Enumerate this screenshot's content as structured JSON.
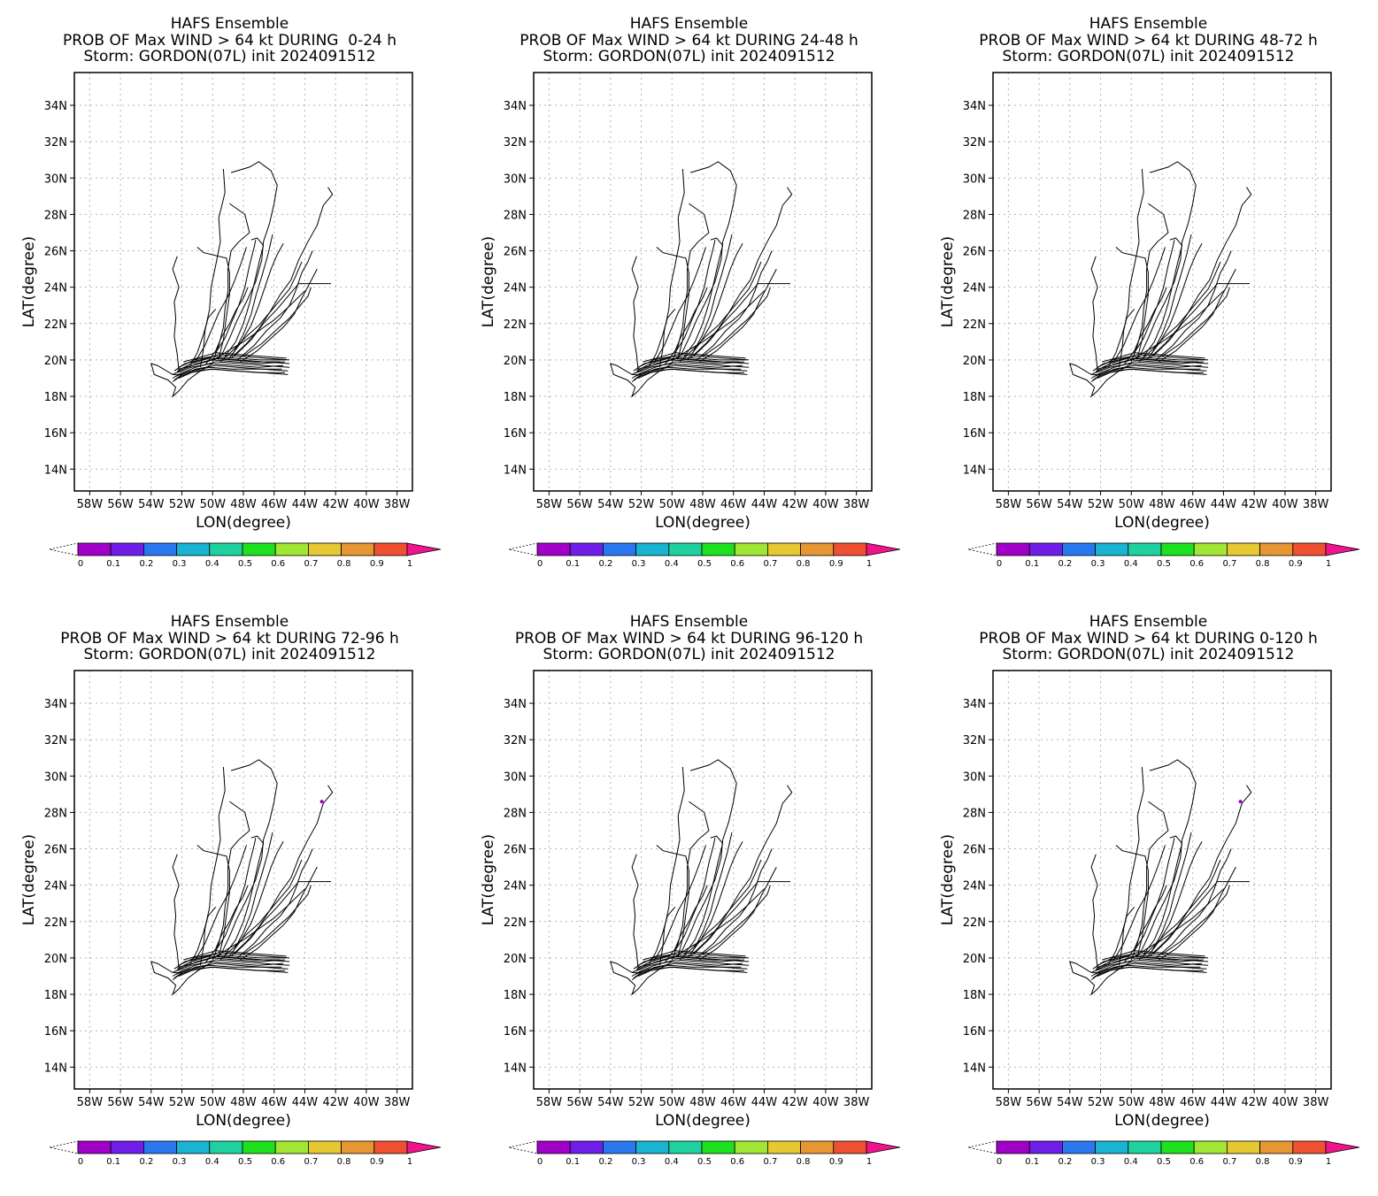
{
  "panels": [
    {
      "title1": "HAFS Ensemble",
      "title2": "PROB OF Max WIND > 64 kt DURING  0-24 h",
      "title3": "Storm: GORDON(07L) init 2024091512",
      "has_dot": false
    },
    {
      "title1": "HAFS Ensemble",
      "title2": "PROB OF Max WIND > 64 kt DURING 24-48 h",
      "title3": "Storm: GORDON(07L) init 2024091512",
      "has_dot": false
    },
    {
      "title1": "HAFS Ensemble",
      "title2": "PROB OF Max WIND > 64 kt DURING 48-72 h",
      "title3": "Storm: GORDON(07L) init 2024091512",
      "has_dot": false
    },
    {
      "title1": "HAFS Ensemble",
      "title2": "PROB OF Max WIND > 64 kt DURING 72-96 h",
      "title3": "Storm: GORDON(07L) init 2024091512",
      "has_dot": true
    },
    {
      "title1": "HAFS Ensemble",
      "title2": "PROB OF Max WIND > 64 kt DURING 96-120 h",
      "title3": "Storm: GORDON(07L) init 2024091512",
      "has_dot": false
    },
    {
      "title1": "HAFS Ensemble",
      "title2": "PROB OF Max WIND > 64 kt DURING 0-120 h",
      "title3": "Storm: GORDON(07L) init 2024091512",
      "has_dot": true
    }
  ],
  "chart_data": {
    "type": "map",
    "xlabel": "LON(degree)",
    "ylabel": "LAT(degree)",
    "xlim": [
      -59,
      -37
    ],
    "ylim": [
      12.8,
      35.8
    ],
    "x_ticks": [
      -58,
      -56,
      -54,
      -52,
      -50,
      -48,
      -46,
      -44,
      -42,
      -40,
      -38
    ],
    "x_tick_labels": [
      "58W",
      "56W",
      "54W",
      "52W",
      "50W",
      "48W",
      "46W",
      "44W",
      "42W",
      "40W",
      "38W"
    ],
    "y_ticks": [
      14,
      16,
      18,
      20,
      22,
      24,
      26,
      28,
      30,
      32,
      34
    ],
    "y_tick_labels": [
      "14N",
      "16N",
      "18N",
      "20N",
      "22N",
      "24N",
      "26N",
      "28N",
      "30N",
      "32N",
      "34N"
    ],
    "grid": true,
    "colorbar": {
      "levels": [
        "0",
        "0.1",
        "0.2",
        "0.3",
        "0.4",
        "0.5",
        "0.6",
        "0.7",
        "0.8",
        "0.9",
        "1"
      ],
      "colors": [
        "#a000c8",
        "#6e1ee6",
        "#2a78f0",
        "#18b4d2",
        "#1ed2a0",
        "#1ee11e",
        "#a0e632",
        "#e6c832",
        "#e69632",
        "#f05032",
        "#f0148c"
      ],
      "under_color": "#ffffff"
    },
    "probability_points": [
      {
        "panel": 3,
        "lon": -42.9,
        "lat": 28.6,
        "value": 0.05
      },
      {
        "panel": 5,
        "lon": -42.9,
        "lat": 28.6,
        "value": 0.05
      }
    ],
    "tracks": [
      [
        [
          -45.0,
          20.0
        ],
        [
          -46.6,
          20.1
        ],
        [
          -48.2,
          20.2
        ],
        [
          -49.6,
          20.3
        ],
        [
          -50.8,
          20.0
        ],
        [
          -51.8,
          19.8
        ],
        [
          -52.5,
          19.4
        ]
      ],
      [
        [
          -45.0,
          19.8
        ],
        [
          -46.7,
          19.9
        ],
        [
          -48.3,
          20.0
        ],
        [
          -49.7,
          20.1
        ],
        [
          -51.0,
          19.8
        ],
        [
          -51.9,
          19.5
        ],
        [
          -52.6,
          19.2
        ]
      ],
      [
        [
          -45.0,
          19.6
        ],
        [
          -46.7,
          19.7
        ],
        [
          -48.3,
          19.8
        ],
        [
          -49.8,
          19.9
        ],
        [
          -51.1,
          19.6
        ],
        [
          -52.0,
          19.3
        ],
        [
          -52.6,
          19.0
        ]
      ],
      [
        [
          -45.1,
          19.4
        ],
        [
          -46.8,
          19.5
        ],
        [
          -48.4,
          19.6
        ],
        [
          -49.8,
          19.7
        ],
        [
          -51.1,
          19.5
        ],
        [
          -52.0,
          19.2
        ],
        [
          -52.5,
          18.9
        ]
      ],
      [
        [
          -45.1,
          19.2
        ],
        [
          -46.8,
          19.3
        ],
        [
          -48.5,
          19.4
        ],
        [
          -49.9,
          19.5
        ],
        [
          -51.2,
          19.4
        ],
        [
          -52.1,
          19.1
        ],
        [
          -52.6,
          18.8
        ]
      ],
      [
        [
          -45.2,
          20.1
        ],
        [
          -46.8,
          20.2
        ],
        [
          -48.3,
          20.3
        ],
        [
          -49.8,
          20.4
        ],
        [
          -51.0,
          20.1
        ],
        [
          -51.9,
          19.9
        ]
      ],
      [
        [
          -45.3,
          19.9
        ],
        [
          -46.9,
          19.8
        ],
        [
          -48.5,
          19.9
        ],
        [
          -50.0,
          20.0
        ],
        [
          -51.3,
          19.7
        ],
        [
          -52.2,
          19.5
        ]
      ],
      [
        [
          -45.4,
          19.7
        ],
        [
          -47.0,
          19.6
        ],
        [
          -48.6,
          19.7
        ],
        [
          -50.1,
          19.8
        ],
        [
          -51.4,
          19.6
        ],
        [
          -52.3,
          19.3
        ]
      ],
      [
        [
          -45.5,
          19.5
        ],
        [
          -47.1,
          19.5
        ],
        [
          -48.7,
          19.5
        ],
        [
          -50.2,
          19.6
        ],
        [
          -51.5,
          19.4
        ],
        [
          -52.4,
          19.1
        ]
      ],
      [
        [
          -45.2,
          20.0
        ],
        [
          -46.9,
          20.0
        ],
        [
          -48.5,
          20.1
        ],
        [
          -50.0,
          20.2
        ],
        [
          -51.2,
          20.0
        ],
        [
          -52.2,
          19.6
        ]
      ],
      [
        [
          -45.3,
          19.3
        ],
        [
          -47.0,
          19.3
        ],
        [
          -48.6,
          19.4
        ],
        [
          -50.1,
          19.5
        ],
        [
          -51.4,
          19.3
        ],
        [
          -52.2,
          19.0
        ]
      ],
      [
        [
          -45.6,
          19.9
        ],
        [
          -47.2,
          19.9
        ],
        [
          -48.8,
          20.0
        ],
        [
          -50.2,
          20.1
        ],
        [
          -51.4,
          19.8
        ],
        [
          -52.3,
          19.4
        ]
      ],
      [
        [
          -52.0,
          19.2
        ],
        [
          -52.6,
          19.2
        ],
        [
          -53.6,
          19.7
        ],
        [
          -54.0,
          19.8
        ],
        [
          -53.8,
          19.2
        ],
        [
          -52.9,
          18.9
        ],
        [
          -52.4,
          18.5
        ],
        [
          -52.6,
          18.0
        ],
        [
          -52.2,
          18.3
        ],
        [
          -51.6,
          18.9
        ],
        [
          -50.8,
          19.4
        ],
        [
          -50.0,
          19.8
        ]
      ],
      [
        [
          -52.2,
          19.4
        ],
        [
          -52.3,
          20.3
        ],
        [
          -52.5,
          21.3
        ],
        [
          -52.4,
          22.3
        ],
        [
          -52.5,
          23.2
        ],
        [
          -52.2,
          24.0
        ],
        [
          -52.6,
          25.0
        ],
        [
          -52.3,
          25.7
        ]
      ],
      [
        [
          -50.8,
          19.6
        ],
        [
          -50.6,
          20.6
        ],
        [
          -50.5,
          21.6
        ],
        [
          -50.2,
          22.8
        ],
        [
          -50.1,
          24.0
        ],
        [
          -49.8,
          25.2
        ],
        [
          -49.5,
          26.5
        ],
        [
          -49.6,
          27.8
        ],
        [
          -49.2,
          29.2
        ],
        [
          -49.3,
          30.5
        ]
      ],
      [
        [
          -50.0,
          19.9
        ],
        [
          -49.6,
          20.8
        ],
        [
          -49.3,
          21.8
        ],
        [
          -49.2,
          22.8
        ],
        [
          -49.0,
          23.8
        ],
        [
          -49.0,
          25.0
        ],
        [
          -48.8,
          26.0
        ],
        [
          -48.3,
          26.5
        ],
        [
          -47.6,
          27.0
        ],
        [
          -47.9,
          28.0
        ],
        [
          -48.9,
          28.6
        ]
      ],
      [
        [
          -49.6,
          20.1
        ],
        [
          -49.3,
          21.1
        ],
        [
          -49.1,
          22.4
        ],
        [
          -48.9,
          23.6
        ],
        [
          -48.9,
          24.8
        ],
        [
          -49.1,
          25.6
        ],
        [
          -50.6,
          25.9
        ],
        [
          -51.0,
          26.2
        ]
      ],
      [
        [
          -49.4,
          20.3
        ],
        [
          -48.9,
          21.2
        ],
        [
          -48.4,
          22.2
        ],
        [
          -47.8,
          23.2
        ],
        [
          -47.2,
          24.3
        ],
        [
          -46.8,
          25.5
        ],
        [
          -46.7,
          26.5
        ],
        [
          -46.3,
          27.5
        ],
        [
          -46.0,
          28.6
        ],
        [
          -45.8,
          29.6
        ],
        [
          -46.2,
          30.4
        ],
        [
          -47.0,
          30.9
        ],
        [
          -47.6,
          30.6
        ],
        [
          -48.8,
          30.3
        ]
      ],
      [
        [
          -49.2,
          20.2
        ],
        [
          -48.5,
          21.0
        ],
        [
          -48.0,
          22.0
        ],
        [
          -47.6,
          23.1
        ],
        [
          -47.3,
          24.2
        ],
        [
          -47.0,
          25.3
        ],
        [
          -46.7,
          26.3
        ],
        [
          -47.1,
          26.7
        ],
        [
          -47.5,
          26.6
        ]
      ],
      [
        [
          -49.0,
          20.0
        ],
        [
          -48.2,
          20.9
        ],
        [
          -47.5,
          21.9
        ],
        [
          -47.0,
          23.0
        ],
        [
          -46.6,
          24.0
        ],
        [
          -46.2,
          25.0
        ],
        [
          -45.8,
          25.8
        ],
        [
          -45.4,
          26.4
        ]
      ],
      [
        [
          -48.8,
          20.1
        ],
        [
          -47.8,
          20.9
        ],
        [
          -47.0,
          21.7
        ],
        [
          -46.3,
          22.6
        ],
        [
          -45.6,
          23.6
        ],
        [
          -44.9,
          24.4
        ],
        [
          -44.4,
          25.5
        ],
        [
          -43.8,
          26.5
        ],
        [
          -43.2,
          27.4
        ],
        [
          -42.8,
          28.5
        ],
        [
          -42.2,
          29.1
        ],
        [
          -42.5,
          29.5
        ]
      ],
      [
        [
          -48.6,
          20.2
        ],
        [
          -47.5,
          21.1
        ],
        [
          -46.7,
          22.0
        ],
        [
          -45.8,
          22.8
        ],
        [
          -45.0,
          23.6
        ],
        [
          -44.4,
          24.2
        ],
        [
          -43.5,
          24.2
        ],
        [
          -42.3,
          24.2
        ]
      ],
      [
        [
          -48.4,
          20.0
        ],
        [
          -47.3,
          20.8
        ],
        [
          -46.5,
          21.6
        ],
        [
          -45.6,
          22.3
        ],
        [
          -45.0,
          23.0
        ],
        [
          -44.6,
          23.8
        ],
        [
          -44.2,
          24.8
        ],
        [
          -43.8,
          25.4
        ],
        [
          -43.5,
          26.0
        ]
      ],
      [
        [
          -48.2,
          19.9
        ],
        [
          -47.1,
          20.5
        ],
        [
          -46.2,
          21.2
        ],
        [
          -45.4,
          21.8
        ],
        [
          -44.7,
          22.5
        ],
        [
          -44.2,
          23.4
        ],
        [
          -43.7,
          24.2
        ],
        [
          -43.2,
          25.0
        ]
      ],
      [
        [
          -48.0,
          20.2
        ],
        [
          -46.8,
          20.9
        ],
        [
          -45.8,
          21.7
        ],
        [
          -45.0,
          22.3
        ],
        [
          -44.4,
          22.9
        ],
        [
          -43.8,
          23.5
        ],
        [
          -43.6,
          24.0
        ]
      ],
      [
        [
          -48.7,
          20.3
        ],
        [
          -48.0,
          21.4
        ],
        [
          -47.5,
          22.5
        ],
        [
          -47.2,
          23.5
        ],
        [
          -46.8,
          24.6
        ],
        [
          -46.4,
          25.8
        ],
        [
          -46.1,
          26.9
        ]
      ],
      [
        [
          -49.8,
          20.4
        ],
        [
          -49.2,
          21.2
        ],
        [
          -48.7,
          22.2
        ],
        [
          -48.3,
          23.0
        ],
        [
          -47.9,
          24.0
        ],
        [
          -47.6,
          25.2
        ],
        [
          -47.3,
          26.2
        ],
        [
          -47.2,
          26.6
        ]
      ],
      [
        [
          -51.5,
          19.6
        ],
        [
          -51.0,
          20.4
        ],
        [
          -50.6,
          21.4
        ],
        [
          -50.3,
          22.3
        ],
        [
          -49.8,
          22.8
        ]
      ],
      [
        [
          -50.5,
          19.7
        ],
        [
          -49.8,
          20.5
        ],
        [
          -49.4,
          21.3
        ],
        [
          -48.9,
          22.0
        ],
        [
          -48.5,
          22.7
        ],
        [
          -48.0,
          23.4
        ],
        [
          -47.7,
          24.0
        ]
      ],
      [
        [
          -51.2,
          19.8
        ],
        [
          -50.5,
          20.8
        ],
        [
          -50.0,
          21.8
        ],
        [
          -49.6,
          22.6
        ],
        [
          -49.0,
          23.5
        ],
        [
          -48.6,
          24.3
        ],
        [
          -48.2,
          25.2
        ],
        [
          -47.8,
          26.2
        ]
      ],
      [
        [
          -49.5,
          19.9
        ],
        [
          -48.6,
          20.6
        ],
        [
          -47.8,
          21.3
        ],
        [
          -47.0,
          21.9
        ],
        [
          -46.3,
          22.6
        ],
        [
          -45.6,
          23.3
        ],
        [
          -45.0,
          23.9
        ],
        [
          -44.6,
          24.6
        ],
        [
          -44.2,
          25.4
        ]
      ],
      [
        [
          -49.9,
          20.0
        ],
        [
          -49.0,
          20.5
        ],
        [
          -48.0,
          21.0
        ],
        [
          -47.0,
          21.6
        ],
        [
          -46.0,
          22.2
        ],
        [
          -45.2,
          22.8
        ],
        [
          -44.6,
          23.3
        ],
        [
          -44.0,
          23.8
        ]
      ]
    ]
  }
}
